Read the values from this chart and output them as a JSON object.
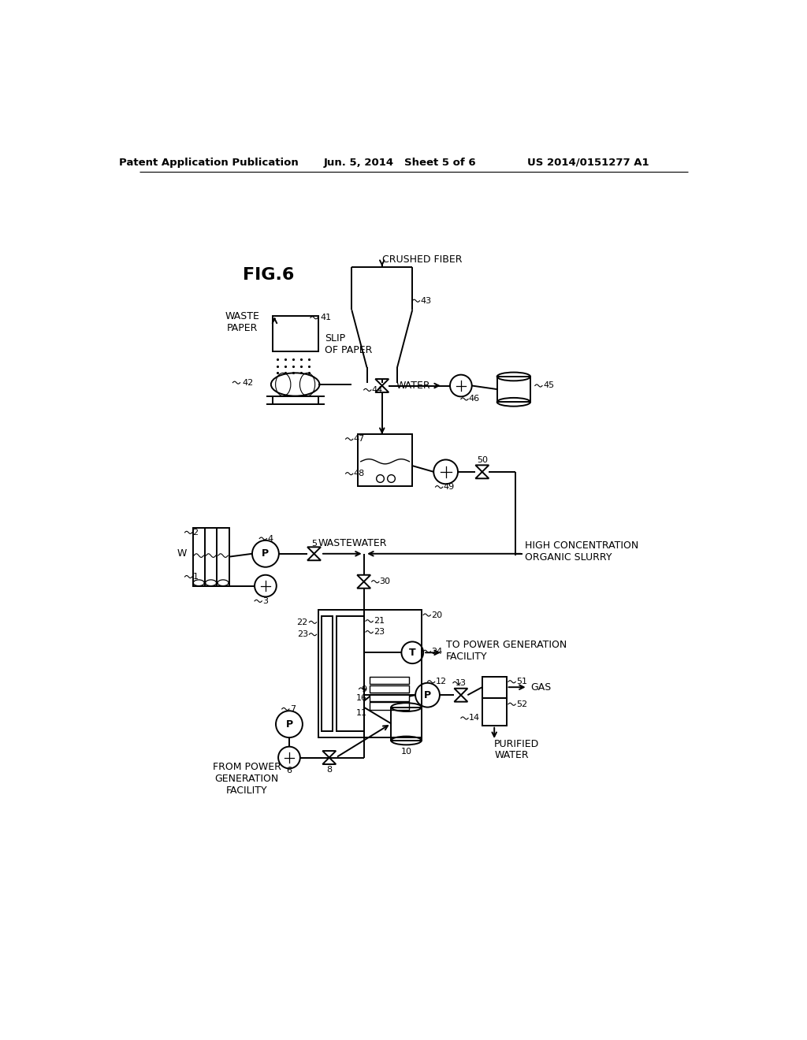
{
  "bg_color": "#ffffff",
  "header_left": "Patent Application Publication",
  "header_mid": "Jun. 5, 2014   Sheet 5 of 6",
  "header_right": "US 2014/0151277 A1",
  "fig_label": "FIG.6"
}
